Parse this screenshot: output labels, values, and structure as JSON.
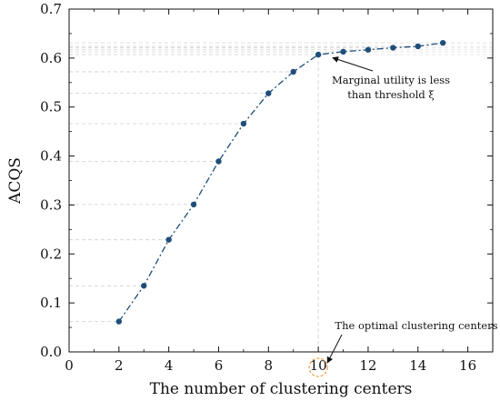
{
  "chart_data": {
    "type": "line",
    "xlabel": "The number of clustering centers",
    "ylabel": "ACQS",
    "xlim": [
      0,
      17
    ],
    "ylim": [
      0,
      0.7
    ],
    "xticks": [
      0,
      2,
      4,
      6,
      8,
      10,
      12,
      14,
      16
    ],
    "yticks": [
      0.0,
      0.1,
      0.2,
      0.3,
      0.4,
      0.5,
      0.6,
      0.7
    ],
    "xtick_labels": [
      "0",
      "2",
      "4",
      "6",
      "8",
      "10",
      "12",
      "14",
      "16"
    ],
    "ytick_labels": [
      "0.0",
      "0.1",
      "0.2",
      "0.3",
      "0.4",
      "0.5",
      "0.6",
      "0.7"
    ],
    "grid": "dashed horizontal reference lines from y-axis to each point",
    "series": [
      {
        "x": [
          2,
          3,
          4,
          5,
          6,
          7,
          8,
          9,
          10,
          11,
          12,
          13,
          14,
          15
        ],
        "y": [
          0.062,
          0.135,
          0.229,
          0.301,
          0.389,
          0.466,
          0.528,
          0.572,
          0.607,
          0.613,
          0.617,
          0.621,
          0.624,
          0.631
        ],
        "color": "#1f4e79",
        "linestyle": "dash-dot"
      }
    ],
    "annotations": [
      {
        "lines": [
          "Marginal utility is less",
          "than threshold ξ"
        ],
        "points_to": {
          "x": 10.5,
          "y": 0.61
        }
      },
      {
        "lines": [
          "The optimal  clustering centers"
        ],
        "points_to": {
          "x": 10,
          "y": 0
        }
      }
    ],
    "highlight": {
      "x": 10,
      "color": "#f0a040"
    }
  }
}
